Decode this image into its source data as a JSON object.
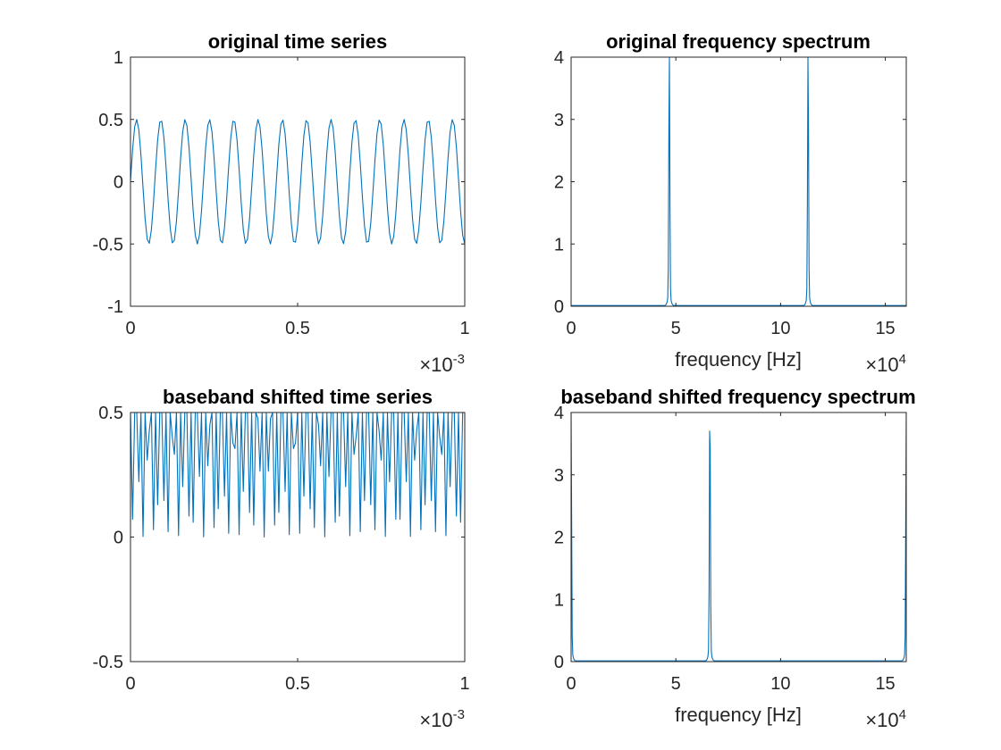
{
  "figure": {
    "background": "#ffffff",
    "axis_color": "#262626"
  },
  "chart_data": [
    {
      "type": "line",
      "title": "original time series",
      "xlabel": "",
      "ylabel": "",
      "xlim": [
        0,
        0.001
      ],
      "ylim": [
        -1,
        1
      ],
      "x_ticks": [
        "0",
        "0.5",
        "1"
      ],
      "y_ticks": [
        "-1",
        "-0.5",
        "0",
        "0.5",
        "1"
      ],
      "x_exponent": "-3",
      "color": "#0072BD",
      "signal": {
        "kind": "sum_of_tones",
        "sample_rate_hz": 160000,
        "duration_s": 0.001,
        "tones_hz": [
          46875,
          113125
        ],
        "amplitudes": [
          0.5,
          0.5
        ]
      }
    },
    {
      "type": "line",
      "title": "original frequency spectrum",
      "xlabel": "frequency [Hz]",
      "ylabel": "",
      "xlim": [
        0,
        160000
      ],
      "ylim": [
        0,
        4
      ],
      "x_ticks": [
        "0",
        "5",
        "10",
        "15"
      ],
      "y_ticks": [
        "0",
        "1",
        "2",
        "3",
        "4"
      ],
      "x_exponent": "4",
      "color": "#0072BD",
      "peaks": [
        {
          "x": 46875,
          "y": 4
        },
        {
          "x": 113125,
          "y": 4
        }
      ]
    },
    {
      "type": "line",
      "title": "baseband shifted time series",
      "xlabel": "",
      "ylabel": "",
      "xlim": [
        0,
        0.001
      ],
      "ylim": [
        -0.5,
        0.5
      ],
      "x_ticks": [
        "0",
        "0.5",
        "1"
      ],
      "y_ticks": [
        "-0.5",
        "0",
        "0.5"
      ],
      "x_exponent": "-3",
      "color": "#0072BD",
      "signal": {
        "kind": "sum_of_tones",
        "sample_rate_hz": 160000,
        "duration_s": 0.001,
        "tones_hz": [
          0,
          66250
        ],
        "amplitudes": [
          0.25,
          0.25
        ]
      }
    },
    {
      "type": "line",
      "title": "baseband shifted frequency spectrum",
      "xlabel": "frequency [Hz]",
      "ylabel": "",
      "xlim": [
        0,
        160000
      ],
      "ylim": [
        0,
        4
      ],
      "x_ticks": [
        "0",
        "5",
        "10",
        "15"
      ],
      "y_ticks": [
        "0",
        "1",
        "2",
        "3",
        "4"
      ],
      "x_exponent": "4",
      "color": "#0072BD",
      "peaks": [
        {
          "x": 0,
          "y": 4
        },
        {
          "x": 66250,
          "y": 4
        },
        {
          "x": 160000,
          "y": 4
        }
      ]
    }
  ]
}
